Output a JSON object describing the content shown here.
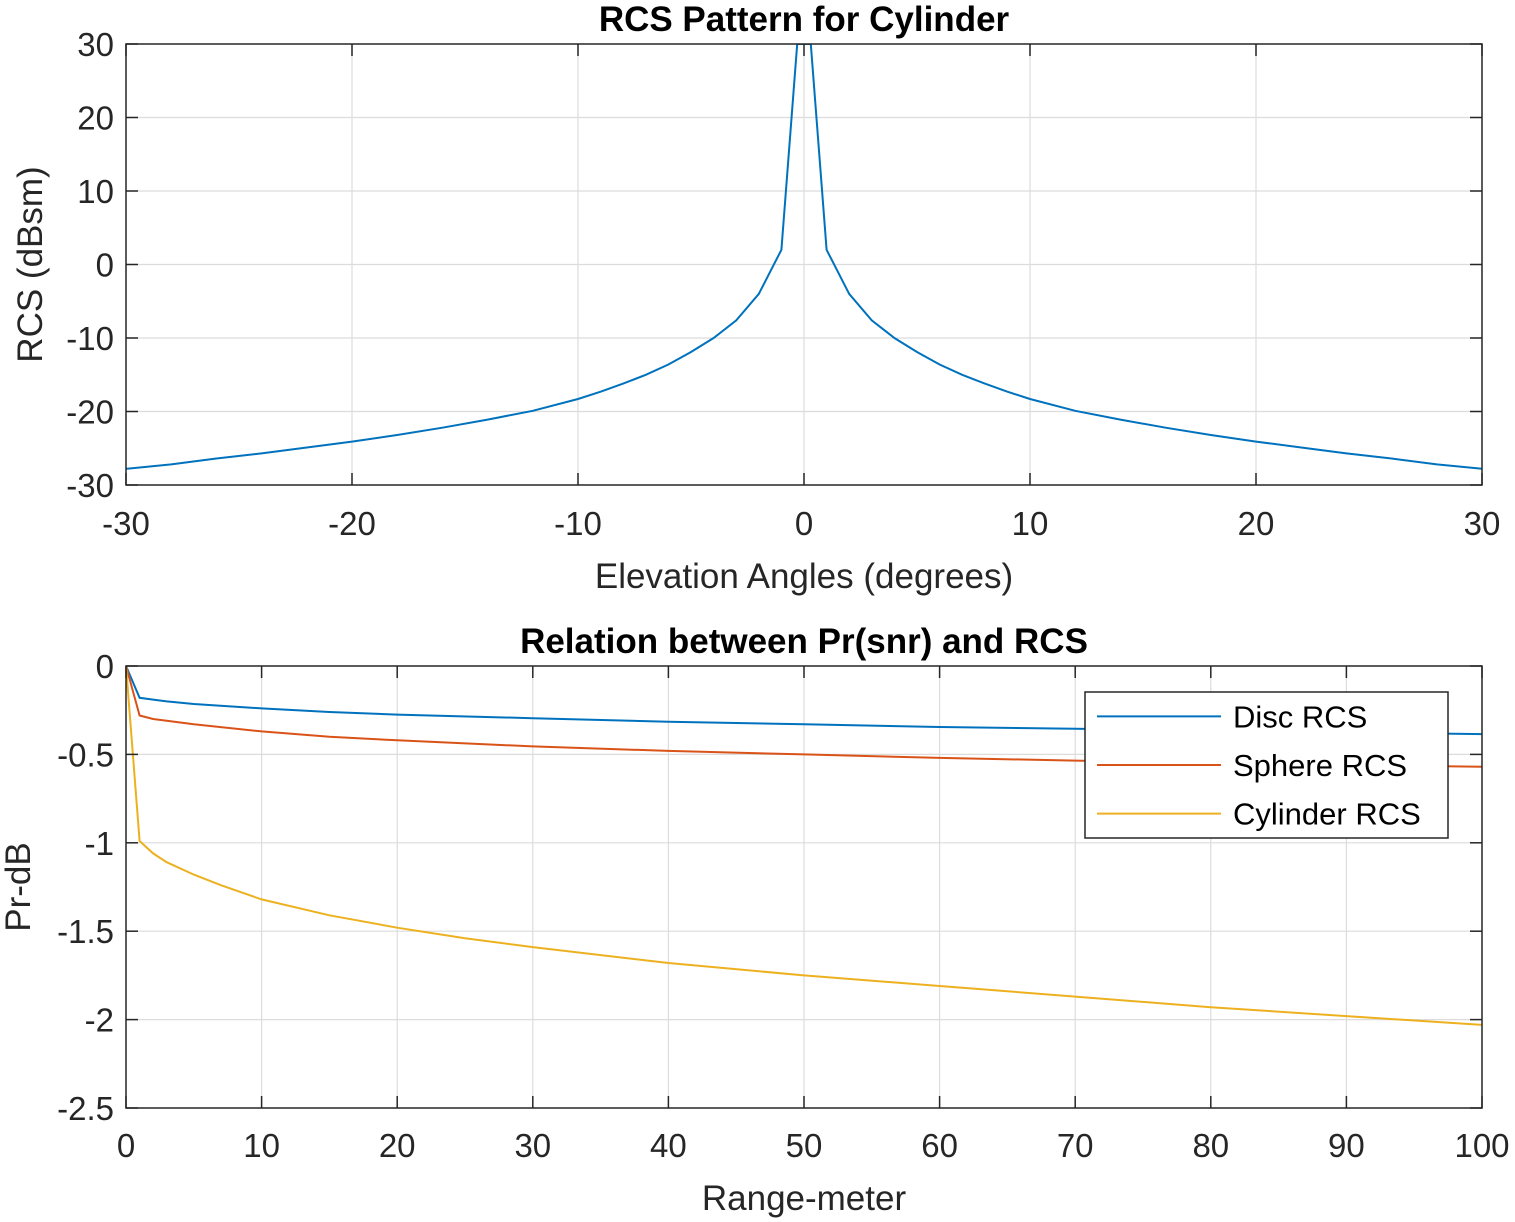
{
  "chart_data": [
    {
      "type": "line",
      "title": "RCS Pattern for Cylinder",
      "xlabel": "Elevation Angles (degrees)",
      "ylabel": "RCS (dBsm)",
      "xlim": [
        -30,
        30
      ],
      "ylim": [
        -30,
        30
      ],
      "xticks": [
        -30,
        -20,
        -10,
        0,
        10,
        20,
        30
      ],
      "yticks": [
        -30,
        -20,
        -10,
        0,
        10,
        20,
        30
      ],
      "grid": true,
      "series": [
        {
          "color": "#0072BD",
          "x": [
            -30,
            -28,
            -26,
            -24,
            -22,
            -20,
            -18,
            -16,
            -14,
            -12,
            -10,
            -9,
            -8,
            -7,
            -6,
            -5,
            -4,
            -3,
            -2,
            -1,
            -0.3,
            0.3,
            1,
            2,
            3,
            4,
            5,
            6,
            7,
            8,
            9,
            10,
            12,
            14,
            16,
            18,
            20,
            22,
            24,
            26,
            28,
            30
          ],
          "y": [
            -27.8,
            -27.2,
            -26.4,
            -25.7,
            -24.9,
            -24.1,
            -23.2,
            -22.2,
            -21.1,
            -19.9,
            -18.3,
            -17.3,
            -16.2,
            -15.0,
            -13.6,
            -11.9,
            -10.0,
            -7.6,
            -4.0,
            2.0,
            30,
            30,
            2.0,
            -4.0,
            -7.6,
            -10.0,
            -11.9,
            -13.6,
            -15.0,
            -16.2,
            -17.3,
            -18.3,
            -19.9,
            -21.1,
            -22.2,
            -23.2,
            -24.1,
            -24.9,
            -25.7,
            -26.4,
            -27.2,
            -27.8
          ]
        }
      ]
    },
    {
      "type": "line",
      "title": "Relation between Pr(snr) and RCS",
      "xlabel": "Range-meter",
      "ylabel": "Pr-dB",
      "xlim": [
        0,
        100
      ],
      "ylim": [
        -2.5,
        0
      ],
      "xticks": [
        0,
        10,
        20,
        30,
        40,
        50,
        60,
        70,
        80,
        90,
        100
      ],
      "yticks": [
        -2.5,
        -2,
        -1.5,
        -1,
        -0.5,
        0
      ],
      "grid": true,
      "legend_position": "top-right",
      "series": [
        {
          "name": "Disc RCS",
          "color": "#0072BD",
          "x": [
            0,
            1,
            2,
            3,
            5,
            10,
            15,
            20,
            30,
            40,
            50,
            60,
            70,
            80,
            90,
            100
          ],
          "y": [
            0,
            -0.18,
            -0.19,
            -0.2,
            -0.215,
            -0.24,
            -0.26,
            -0.275,
            -0.295,
            -0.315,
            -0.33,
            -0.345,
            -0.355,
            -0.365,
            -0.375,
            -0.385
          ]
        },
        {
          "name": "Sphere RCS",
          "color": "#D95319",
          "x": [
            0,
            1,
            2,
            3,
            5,
            10,
            15,
            20,
            30,
            40,
            50,
            60,
            70,
            80,
            90,
            100
          ],
          "y": [
            0,
            -0.28,
            -0.3,
            -0.31,
            -0.33,
            -0.37,
            -0.4,
            -0.42,
            -0.455,
            -0.48,
            -0.5,
            -0.52,
            -0.535,
            -0.55,
            -0.56,
            -0.57
          ]
        },
        {
          "name": "Cylinder RCS",
          "color": "#EDB120",
          "x": [
            0,
            1,
            2,
            3,
            5,
            7,
            10,
            15,
            20,
            25,
            30,
            40,
            50,
            60,
            70,
            80,
            90,
            100
          ],
          "y": [
            0,
            -0.99,
            -1.06,
            -1.11,
            -1.18,
            -1.24,
            -1.32,
            -1.41,
            -1.48,
            -1.54,
            -1.59,
            -1.68,
            -1.75,
            -1.81,
            -1.87,
            -1.93,
            -1.98,
            -2.03
          ]
        }
      ]
    }
  ]
}
